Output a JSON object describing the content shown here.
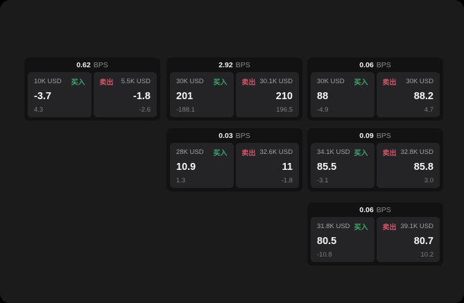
{
  "labels": {
    "bps_unit": "BPS",
    "buy": "买入",
    "sell": "卖出"
  },
  "colors": {
    "screen_background": "#1b1b1c",
    "card_background": "#121213",
    "panel_background": "#242426",
    "buy_green": "#3fa56e",
    "sell_red": "#d0556a"
  },
  "cards": [
    {
      "bps": "0.62",
      "buy": {
        "size": "10K USD",
        "value": "-3.7",
        "sub": "4.3"
      },
      "sell": {
        "size": "5.5K USD",
        "value": "-1.8",
        "sub": "-2.6"
      }
    },
    {
      "bps": "2.92",
      "buy": {
        "size": "30K USD",
        "value": "201",
        "sub": "-188.1"
      },
      "sell": {
        "size": "30.1K USD",
        "value": "210",
        "sub": "196.5"
      }
    },
    {
      "bps": "0.06",
      "buy": {
        "size": "30K USD",
        "value": "88",
        "sub": "-4.9"
      },
      "sell": {
        "size": "30K USD",
        "value": "88.2",
        "sub": "4.7"
      }
    },
    {
      "bps": "0.03",
      "buy": {
        "size": "28K USD",
        "value": "10.9",
        "sub": "1.3"
      },
      "sell": {
        "size": "32.6K USD",
        "value": "11",
        "sub": "-1.8"
      }
    },
    {
      "bps": "0.09",
      "buy": {
        "size": "34.1K USD",
        "value": "85.5",
        "sub": "-3.1"
      },
      "sell": {
        "size": "32.8K USD",
        "value": "85.8",
        "sub": "3.0"
      }
    },
    {
      "bps": "0.06",
      "buy": {
        "size": "31.8K USD",
        "value": "80.5",
        "sub": "-10.8"
      },
      "sell": {
        "size": "39.1K USD",
        "value": "80.7",
        "sub": "10.2"
      }
    }
  ]
}
